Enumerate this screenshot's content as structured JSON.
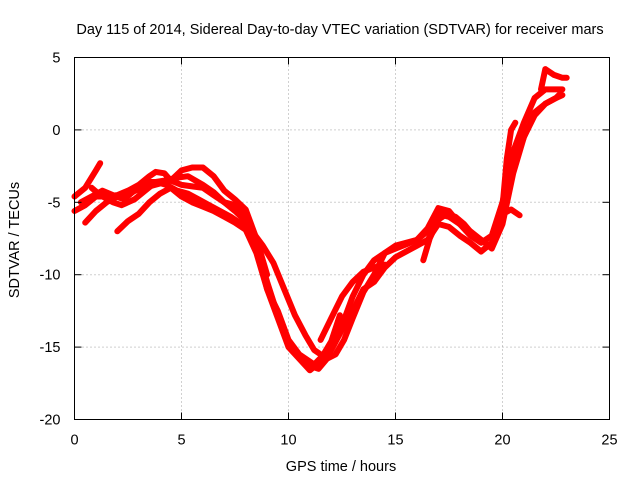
{
  "chart_data": {
    "type": "line",
    "title": "Day 115 of 2014, Sidereal Day-to-day VTEC variation (SDTVAR) for receiver mars",
    "xlabel": "GPS time / hours",
    "ylabel": "SDTVAR / TECUs",
    "xlim": [
      0,
      25
    ],
    "ylim": [
      -20,
      5
    ],
    "xticks": [
      0,
      5,
      10,
      15,
      20,
      25
    ],
    "yticks": [
      -20,
      -15,
      -10,
      -5,
      0,
      5
    ],
    "grid": true,
    "color": "#ff0000",
    "series": [
      {
        "x": [
          0,
          0.5,
          1.0,
          1.2
        ],
        "y": [
          -4.6,
          -4.0,
          -2.8,
          -2.3
        ]
      },
      {
        "x": [
          0,
          0.5,
          1.0,
          1.5,
          2.0,
          2.5,
          3.0,
          3.5,
          3.8,
          4.2,
          4.5,
          5.0,
          5.5,
          6.0,
          6.5,
          7.0,
          7.5,
          8.0,
          8.5,
          9.0,
          9.5,
          10.0,
          10.5,
          11.0,
          11.2,
          11.6,
          12.0,
          12.5,
          13.0,
          13.5,
          14.0,
          14.5,
          15.0,
          15.5,
          16.0,
          16.5,
          17.0,
          17.5,
          18.0,
          18.5,
          19.0,
          19.5,
          20.0,
          20.5,
          21.0,
          21.5,
          22.0,
          22.5,
          22.8
        ],
        "y": [
          -5.6,
          -5.2,
          -4.6,
          -4.6,
          -4.5,
          -4.2,
          -3.8,
          -3.2,
          -2.9,
          -3.0,
          -3.5,
          -3.8,
          -3.9,
          -4.0,
          -4.5,
          -5.0,
          -5.2,
          -6.0,
          -8.0,
          -11.0,
          -12.5,
          -14.5,
          -15.5,
          -16.0,
          -16.2,
          -15.6,
          -15.0,
          -13.5,
          -11.5,
          -10.0,
          -9.0,
          -8.5,
          -8.2,
          -7.9,
          -7.6,
          -6.8,
          -5.4,
          -5.6,
          -6.5,
          -7.3,
          -7.8,
          -7.3,
          -5.0,
          -1.5,
          0.5,
          2.2,
          2.8,
          2.8,
          2.8
        ]
      },
      {
        "x": [
          0.8,
          1.2,
          1.8,
          2.2,
          2.8,
          3.3,
          3.8,
          4.2,
          4.8,
          5.3,
          6.0,
          6.5,
          7.0,
          7.5,
          8.0,
          8.5,
          9.0,
          9.5,
          10.0,
          10.5,
          11.0,
          11.4,
          11.8,
          12.2,
          12.6,
          13.0,
          13.5,
          14.0,
          14.5,
          15.0,
          15.5,
          16.0,
          16.5,
          17.0,
          17.5,
          18.0,
          18.5,
          19.0,
          19.5,
          20.0,
          20.5,
          21.0,
          21.5,
          22.0,
          22.5,
          22.7
        ],
        "y": [
          -4.0,
          -4.5,
          -5.0,
          -5.2,
          -4.8,
          -4.2,
          -3.6,
          -3.5,
          -3.3,
          -3.2,
          -3.8,
          -4.3,
          -5.0,
          -5.6,
          -6.3,
          -8.0,
          -10.5,
          -12.8,
          -14.8,
          -15.7,
          -16.3,
          -16.5,
          -15.8,
          -15.5,
          -14.5,
          -13.0,
          -11.2,
          -10.0,
          -8.5,
          -8.0,
          -7.8,
          -7.6,
          -7.0,
          -5.8,
          -6.0,
          -6.5,
          -7.0,
          -7.6,
          -8.2,
          -6.5,
          -3.0,
          -0.5,
          1.0,
          1.8,
          2.2,
          2.5
        ]
      },
      {
        "x": [
          2.0,
          2.5,
          3.0,
          3.5,
          4.0,
          4.5,
          5.0,
          5.5,
          6.0,
          6.5,
          7.0,
          7.5,
          8.0,
          8.5,
          9.0,
          9.5,
          10.0,
          10.5,
          11.0,
          11.5,
          12.0,
          12.5,
          13.0,
          13.5,
          14.0,
          14.5,
          15.0,
          15.5,
          16.0,
          16.5,
          17.0,
          17.5,
          18.0,
          18.5,
          19.0,
          19.5,
          20.0,
          20.5,
          21.0,
          21.5,
          22.0,
          22.5,
          22.8
        ],
        "y": [
          -7.0,
          -6.3,
          -5.8,
          -5.0,
          -4.4,
          -4.0,
          -4.6,
          -5.0,
          -5.3,
          -5.6,
          -6.0,
          -6.4,
          -6.9,
          -8.5,
          -11.0,
          -13.0,
          -15.0,
          -15.8,
          -16.6,
          -16.0,
          -15.2,
          -13.8,
          -12.5,
          -11.0,
          -10.5,
          -9.5,
          -8.8,
          -8.4,
          -8.0,
          -7.6,
          -6.5,
          -6.7,
          -7.3,
          -7.8,
          -8.4,
          -7.8,
          -5.5,
          -2.5,
          -0.5,
          1.2,
          1.8,
          2.2,
          2.4
        ]
      },
      {
        "x": [
          0.3,
          0.8,
          1.3,
          1.8,
          2.3,
          2.8,
          3.3,
          3.8,
          4.3,
          4.8,
          5.3,
          5.8,
          6.3,
          6.8,
          7.3,
          7.8,
          8.3,
          8.8,
          9.3,
          9.8,
          10.3,
          10.8,
          11.2,
          11.6,
          12.0,
          12.4
        ],
        "y": [
          -5.0,
          -4.6,
          -4.2,
          -4.5,
          -4.8,
          -4.2,
          -3.6,
          -3.6,
          -3.8,
          -4.2,
          -4.4,
          -4.8,
          -5.2,
          -5.6,
          -6.0,
          -6.5,
          -7.0,
          -8.0,
          -9.2,
          -11.0,
          -12.8,
          -14.2,
          -15.2,
          -15.6,
          -14.6,
          -12.8
        ]
      },
      {
        "x": [
          0.5,
          1.0,
          1.5,
          2.0,
          2.5,
          3.0,
          3.5,
          4.0,
          4.5,
          5.0,
          5.5,
          6.0,
          6.5,
          7.0,
          7.5,
          8.0,
          8.5,
          9.0
        ],
        "y": [
          -6.4,
          -5.6,
          -5.0,
          -4.6,
          -4.4,
          -4.1,
          -3.9,
          -3.7,
          -3.5,
          -2.8,
          -2.6,
          -2.6,
          -3.2,
          -4.2,
          -4.8,
          -5.5,
          -7.5,
          -10.0
        ]
      },
      {
        "x": [
          11.5,
          12.0,
          12.5,
          13.0,
          13.5,
          14.0,
          14.5
        ],
        "y": [
          -14.5,
          -13.0,
          -11.5,
          -10.5,
          -9.8,
          -9.5,
          -9.3
        ]
      },
      {
        "x": [
          16.3,
          16.6,
          17.0,
          17.4,
          17.8,
          18.2,
          18.6,
          19.0,
          19.4
        ],
        "y": [
          -9.0,
          -7.5,
          -6.2,
          -5.8,
          -6.0,
          -6.5,
          -7.2,
          -7.6,
          -8.0
        ]
      },
      {
        "x": [
          20.0,
          20.2,
          20.4,
          20.6
        ],
        "y": [
          -5.3,
          -2.0,
          0.0,
          0.5
        ]
      },
      {
        "x": [
          20.0,
          20.4,
          20.8
        ],
        "y": [
          -5.8,
          -5.5,
          -5.9
        ]
      },
      {
        "x": [
          21.8,
          22.0,
          22.4,
          22.8,
          23.0
        ],
        "y": [
          2.8,
          4.2,
          3.8,
          3.6,
          3.6
        ]
      }
    ]
  }
}
